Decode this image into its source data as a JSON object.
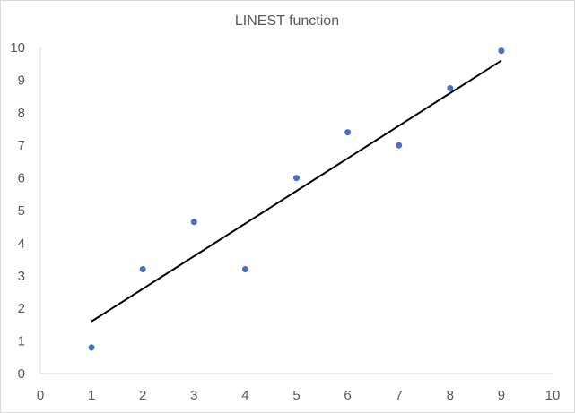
{
  "chart_data": {
    "type": "scatter",
    "title": "LINEST function",
    "xlabel": "",
    "ylabel": "",
    "xlim": [
      0,
      10
    ],
    "ylim": [
      0,
      10
    ],
    "x_ticks": [
      "0",
      "1",
      "2",
      "3",
      "4",
      "5",
      "6",
      "7",
      "8",
      "9",
      "10"
    ],
    "y_ticks": [
      "0",
      "1",
      "2",
      "3",
      "4",
      "5",
      "6",
      "7",
      "8",
      "9",
      "10"
    ],
    "grid": false,
    "legend": "none",
    "series": [
      {
        "x": [
          1,
          2,
          3,
          4,
          5,
          6,
          7,
          8,
          9
        ],
        "y": [
          0.8,
          3.2,
          4.65,
          3.2,
          6.0,
          7.4,
          7.0,
          8.75,
          9.9
        ],
        "color": "#4472c4"
      }
    ],
    "trendline": {
      "x": [
        1,
        9
      ],
      "y": [
        1.6,
        9.6
      ],
      "color": "#000000"
    }
  }
}
